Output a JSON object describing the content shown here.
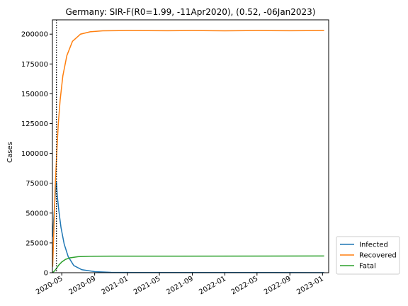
{
  "chart_data": {
    "type": "line",
    "title": "Germany: SIR-F(R0=1.99, -11Apr2020), (0.52, -06Jan2023)",
    "xlabel": "",
    "ylabel": "Cases",
    "ylim": [
      0,
      212000
    ],
    "xlim": [
      "2020-03-27",
      "2023-01-24"
    ],
    "x_tick_labels": [
      "2020-05",
      "2020-09",
      "2021-01",
      "2021-05",
      "2021-09",
      "2022-01",
      "2022-05",
      "2022-09",
      "2023-01"
    ],
    "x_tick_dates": [
      "2020-05-01",
      "2020-09-01",
      "2021-01-01",
      "2021-05-01",
      "2021-09-01",
      "2022-01-01",
      "2022-05-01",
      "2022-09-01",
      "2023-01-01"
    ],
    "y_ticks": [
      0,
      25000,
      50000,
      75000,
      100000,
      125000,
      150000,
      175000,
      200000
    ],
    "vline": {
      "date": "2020-04-11",
      "style": "dotted"
    },
    "legend_position": "lower-right-outside",
    "grid": false,
    "series": [
      {
        "name": "Infected",
        "color": "#1f77b4",
        "points": [
          [
            "2020-03-28",
            30000
          ],
          [
            "2020-04-01",
            45000
          ],
          [
            "2020-04-05",
            60000
          ],
          [
            "2020-04-08",
            70000
          ],
          [
            "2020-04-11",
            76000
          ],
          [
            "2020-04-14",
            65000
          ],
          [
            "2020-04-20",
            52000
          ],
          [
            "2020-04-28",
            38000
          ],
          [
            "2020-05-10",
            24000
          ],
          [
            "2020-05-25",
            13500
          ],
          [
            "2020-06-15",
            6000
          ],
          [
            "2020-07-15",
            2500
          ],
          [
            "2020-09-01",
            900
          ],
          [
            "2020-11-01",
            300
          ],
          [
            "2021-03-01",
            150
          ],
          [
            "2023-01-07",
            100
          ]
        ]
      },
      {
        "name": "Recovered",
        "color": "#ff7f0e",
        "points": [
          [
            "2020-03-28",
            5000
          ],
          [
            "2020-04-02",
            40000
          ],
          [
            "2020-04-06",
            70000
          ],
          [
            "2020-04-11",
            95000
          ],
          [
            "2020-04-18",
            125000
          ],
          [
            "2020-04-25",
            145000
          ],
          [
            "2020-05-05",
            165000
          ],
          [
            "2020-05-20",
            182000
          ],
          [
            "2020-06-10",
            194000
          ],
          [
            "2020-07-10",
            200000
          ],
          [
            "2020-08-15",
            202000
          ],
          [
            "2020-10-01",
            202800
          ],
          [
            "2021-01-01",
            203000
          ],
          [
            "2021-06-01",
            202900
          ],
          [
            "2021-09-01",
            203000
          ],
          [
            "2022-01-01",
            202800
          ],
          [
            "2022-05-01",
            203000
          ],
          [
            "2022-09-01",
            202900
          ],
          [
            "2023-01-07",
            203000
          ]
        ]
      },
      {
        "name": "Fatal",
        "color": "#2ca02c",
        "points": [
          [
            "2020-03-28",
            200
          ],
          [
            "2020-04-04",
            1500
          ],
          [
            "2020-04-11",
            3500
          ],
          [
            "2020-04-20",
            6500
          ],
          [
            "2020-05-01",
            9000
          ],
          [
            "2020-05-15",
            11200
          ],
          [
            "2020-06-01",
            12500
          ],
          [
            "2020-07-01",
            13400
          ],
          [
            "2020-08-15",
            13800
          ],
          [
            "2020-11-01",
            13900
          ],
          [
            "2021-06-01",
            13900
          ],
          [
            "2023-01-07",
            14000
          ]
        ]
      }
    ]
  }
}
